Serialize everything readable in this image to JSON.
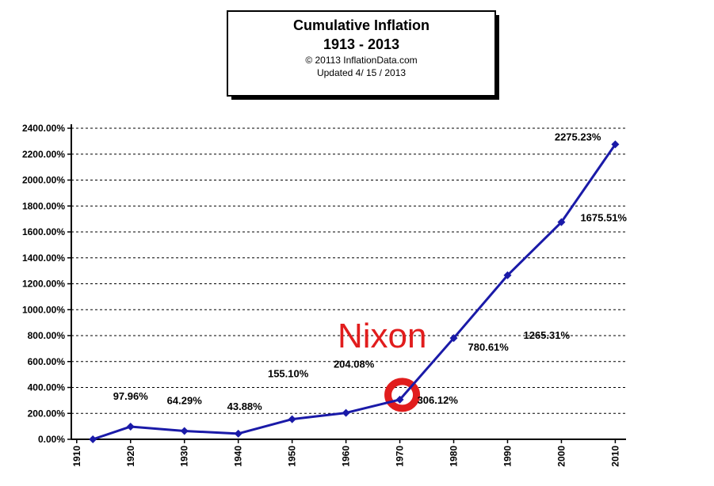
{
  "chart_data": {
    "type": "line",
    "title_line1": "Cumulative Inflation",
    "title_line2": "1913 - 2013",
    "copyright": "© 20113 InflationData.com",
    "updated": "Updated  4/ 15 / 2013",
    "x_ticks": [
      "1910",
      "1920",
      "1930",
      "1940",
      "1950",
      "1960",
      "1970",
      "1980",
      "1990",
      "2000",
      "2010"
    ],
    "y_ticks": [
      "0.00%",
      "200.00%",
      "400.00%",
      "600.00%",
      "800.00%",
      "1000.00%",
      "1200.00%",
      "1400.00%",
      "1600.00%",
      "1800.00%",
      "2000.00%",
      "2200.00%",
      "2400.00%"
    ],
    "xlim": [
      1909,
      2012
    ],
    "ylim": [
      0,
      2400
    ],
    "grid": true,
    "series": [
      {
        "color": "#1a1aa8",
        "points": [
          {
            "x": 1913,
            "y": 0,
            "label": ""
          },
          {
            "x": 1920,
            "y": 97.96,
            "label": "97.96%"
          },
          {
            "x": 1930,
            "y": 64.29,
            "label": "64.29%"
          },
          {
            "x": 1940,
            "y": 43.88,
            "label": "43.88%"
          },
          {
            "x": 1950,
            "y": 155.1,
            "label": "155.10%"
          },
          {
            "x": 1960,
            "y": 204.08,
            "label": "204.08%"
          },
          {
            "x": 1970,
            "y": 306.12,
            "label": "306.12%"
          },
          {
            "x": 1980,
            "y": 780.61,
            "label": "780.61%"
          },
          {
            "x": 1990,
            "y": 1265.31,
            "label": "1265.31%"
          },
          {
            "x": 2000,
            "y": 1675.51,
            "label": "1675.51%"
          },
          {
            "x": 2010,
            "y": 2275.23,
            "label": "2275.23%"
          }
        ]
      }
    ],
    "annotation": {
      "text": "Nixon",
      "color": "#e11d1d",
      "target_x": 1970
    }
  }
}
